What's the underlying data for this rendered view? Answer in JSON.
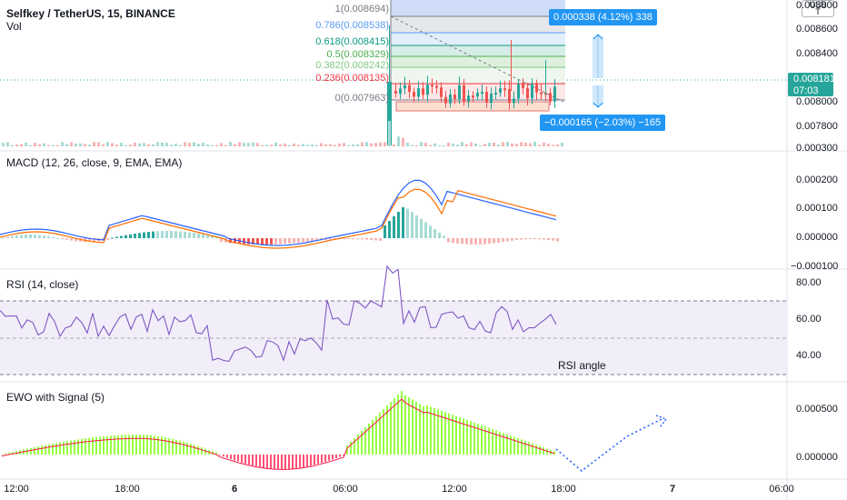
{
  "header": {
    "symbol_title": "Selfkey / TetherUS, 15, BINANCE",
    "volume_label": "Vol",
    "currency_lines": [
      "USD",
      "T"
    ]
  },
  "price_axis": {
    "ticks": [
      "0.008800",
      "0.008600",
      "0.008400",
      "0.008000",
      "0.007800",
      "0.000300"
    ],
    "last_price": "0.008181",
    "countdown": "07:03"
  },
  "fib": {
    "levels": [
      {
        "ratio": "1",
        "price": "0.008694",
        "color": "#787b86"
      },
      {
        "ratio": "0.786",
        "price": "0.008538",
        "color": "#5b9cf6"
      },
      {
        "ratio": "0.618",
        "price": "0.008415",
        "color": "#089981"
      },
      {
        "ratio": "0.5",
        "price": "0.008329",
        "color": "#4caf50"
      },
      {
        "ratio": "0.382",
        "price": "0.008242",
        "color": "#81c784"
      },
      {
        "ratio": "0.236",
        "price": "0.008135",
        "color": "#f23645"
      },
      {
        "ratio": "0",
        "price": "0.007963",
        "color": "#787b86"
      }
    ]
  },
  "measure": {
    "up_label": "0.000338 (4.12%) 338",
    "down_label": "−0.000165 (−2.03%) −165"
  },
  "macd": {
    "title": "MACD (12, 26, close, 9, EMA, EMA)",
    "ticks": [
      "0.000200",
      "0.000100",
      "0.000000",
      "−0.000100"
    ]
  },
  "rsi": {
    "title": "RSI (14, close)",
    "ticks": [
      "80.00",
      "60.00",
      "40.00"
    ],
    "annotation": "RSI angle"
  },
  "ewo": {
    "title": "EWO with Signal (5)",
    "ticks": [
      "0.000500",
      "0.000000"
    ]
  },
  "time_axis": {
    "labels": [
      {
        "text": "12:00",
        "bold": false
      },
      {
        "text": "18:00",
        "bold": false
      },
      {
        "text": "6",
        "bold": true
      },
      {
        "text": "06:00",
        "bold": false
      },
      {
        "text": "12:00",
        "bold": false
      },
      {
        "text": "18:00",
        "bold": false
      },
      {
        "text": "7",
        "bold": true
      },
      {
        "text": "06:00",
        "bold": false
      }
    ]
  },
  "colors": {
    "up": "#26a69a",
    "down": "#ef5350",
    "macd_line": "#2962ff",
    "signal_line": "#ff6d00",
    "rsi_line": "#7e57c2",
    "ewo_up": "#76ff03",
    "ewo_down": "#ff1744",
    "blue_label": "#2196f3",
    "price_tag": "#26a69a"
  }
}
